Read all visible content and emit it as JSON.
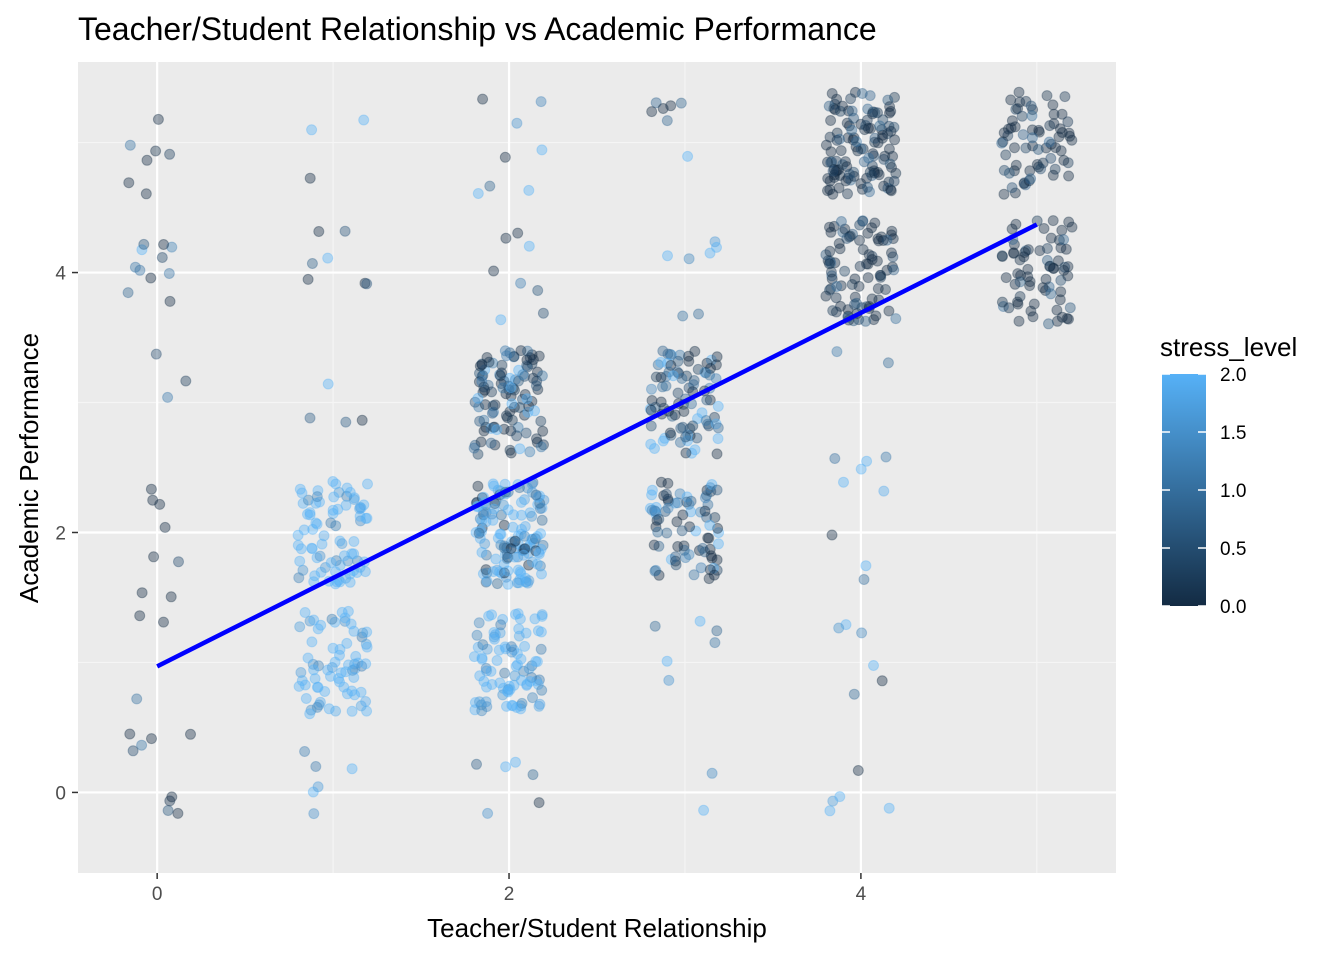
{
  "colors": {
    "panel": "#ebebeb",
    "grid_major": "#ffffff",
    "grid_minor": "#f5f5f5",
    "trend_line": "#0000ff",
    "stress_low": "#132b43",
    "stress_high": "#56b1f7"
  },
  "chart_data": {
    "type": "scatter",
    "title": "Teacher/Student Relationship vs Academic Performance",
    "xlabel": "Teacher/Student Relationship",
    "ylabel": "Academic Performance",
    "xlim": [
      -0.45,
      5.45
    ],
    "ylim": [
      -0.62,
      5.62
    ],
    "x_ticks": [
      0,
      2,
      4
    ],
    "y_ticks": [
      0,
      2,
      4
    ],
    "x_minor": [
      1,
      3,
      5
    ],
    "y_minor": [
      1,
      3,
      5
    ],
    "grid": true,
    "jitter": true,
    "point_opacity": 0.4,
    "color_variable": "stress_level",
    "legend": {
      "title": "stress_level",
      "placement": "right",
      "type": "gradient",
      "range": [
        0.0,
        2.0
      ],
      "ticks": [
        "0.0",
        "0.5",
        "1.0",
        "1.5",
        "2.0"
      ]
    },
    "trend_line": {
      "x": [
        0,
        5
      ],
      "y": [
        0.97,
        4.37
      ]
    },
    "clusters": [
      {
        "x": 0,
        "spread": 0.2,
        "y": [
          -0.2,
          0.0
        ],
        "n": 4,
        "stress": 0.5
      },
      {
        "x": 0,
        "spread": 0.2,
        "y": [
          0.05,
          0.9
        ],
        "n": 6,
        "stress": 0.6
      },
      {
        "x": 0,
        "spread": 0.2,
        "y": [
          1.2,
          2.4
        ],
        "n": 10,
        "stress": 0.4
      },
      {
        "x": 0,
        "spread": 0.2,
        "y": [
          2.8,
          3.4
        ],
        "n": 3,
        "stress": 0.8
      },
      {
        "x": 0,
        "spread": 0.2,
        "y": [
          3.7,
          4.3
        ],
        "n": 11,
        "stress": 0.9
      },
      {
        "x": 0,
        "spread": 0.2,
        "y": [
          4.6,
          5.3
        ],
        "n": 7,
        "stress": 0.5
      },
      {
        "x": 1,
        "spread": 0.2,
        "y": [
          -0.35,
          0.4
        ],
        "n": 6,
        "stress": 1.4
      },
      {
        "x": 1,
        "spread": 0.2,
        "y": [
          0.6,
          1.4
        ],
        "n": 70,
        "stress": 1.8
      },
      {
        "x": 1,
        "spread": 0.2,
        "y": [
          1.6,
          2.4
        ],
        "n": 80,
        "stress": 1.8
      },
      {
        "x": 1,
        "spread": 0.2,
        "y": [
          2.7,
          3.3
        ],
        "n": 4,
        "stress": 1.2
      },
      {
        "x": 1,
        "spread": 0.2,
        "y": [
          3.6,
          4.4
        ],
        "n": 7,
        "stress": 0.9
      },
      {
        "x": 1,
        "spread": 0.2,
        "y": [
          4.7,
          5.3
        ],
        "n": 3,
        "stress": 0.8
      },
      {
        "x": 2,
        "spread": 0.2,
        "y": [
          -0.25,
          0.35
        ],
        "n": 6,
        "stress": 1.2
      },
      {
        "x": 2,
        "spread": 0.2,
        "y": [
          0.6,
          1.4
        ],
        "n": 90,
        "stress": 1.75
      },
      {
        "x": 2,
        "spread": 0.2,
        "y": [
          1.6,
          2.4
        ],
        "n": 140,
        "stress": 1.4
      },
      {
        "x": 2,
        "spread": 0.2,
        "y": [
          2.6,
          3.4
        ],
        "n": 110,
        "stress": 0.7
      },
      {
        "x": 2,
        "spread": 0.2,
        "y": [
          3.6,
          4.4
        ],
        "n": 8,
        "stress": 0.9
      },
      {
        "x": 2,
        "spread": 0.2,
        "y": [
          4.6,
          5.35
        ],
        "n": 8,
        "stress": 1.1
      },
      {
        "x": 3,
        "spread": 0.2,
        "y": [
          -0.2,
          0.3
        ],
        "n": 2,
        "stress": 1.2
      },
      {
        "x": 3,
        "spread": 0.2,
        "y": [
          0.8,
          1.4
        ],
        "n": 6,
        "stress": 1.0
      },
      {
        "x": 3,
        "spread": 0.2,
        "y": [
          1.6,
          2.4
        ],
        "n": 80,
        "stress": 0.8
      },
      {
        "x": 3,
        "spread": 0.2,
        "y": [
          2.6,
          3.4
        ],
        "n": 90,
        "stress": 0.8
      },
      {
        "x": 3,
        "spread": 0.2,
        "y": [
          3.6,
          4.3
        ],
        "n": 7,
        "stress": 1.5
      },
      {
        "x": 3,
        "spread": 0.2,
        "y": [
          4.6,
          5.35
        ],
        "n": 7,
        "stress": 1.4
      },
      {
        "x": 4,
        "spread": 0.2,
        "y": [
          -0.15,
          0.35
        ],
        "n": 5,
        "stress": 1.3
      },
      {
        "x": 4,
        "spread": 0.2,
        "y": [
          0.6,
          1.3
        ],
        "n": 6,
        "stress": 1.2
      },
      {
        "x": 4,
        "spread": 0.2,
        "y": [
          1.6,
          2.7
        ],
        "n": 9,
        "stress": 1.4
      },
      {
        "x": 4,
        "spread": 0.2,
        "y": [
          3.2,
          3.4
        ],
        "n": 2,
        "stress": 1.3
      },
      {
        "x": 4,
        "spread": 0.2,
        "y": [
          3.6,
          4.4
        ],
        "n": 90,
        "stress": 0.4
      },
      {
        "x": 4,
        "spread": 0.2,
        "y": [
          4.6,
          5.4
        ],
        "n": 120,
        "stress": 0.4
      },
      {
        "x": 5,
        "spread": 0.2,
        "y": [
          3.6,
          4.4
        ],
        "n": 70,
        "stress": 0.4
      },
      {
        "x": 5,
        "spread": 0.2,
        "y": [
          4.6,
          5.4
        ],
        "n": 70,
        "stress": 0.4
      }
    ]
  }
}
